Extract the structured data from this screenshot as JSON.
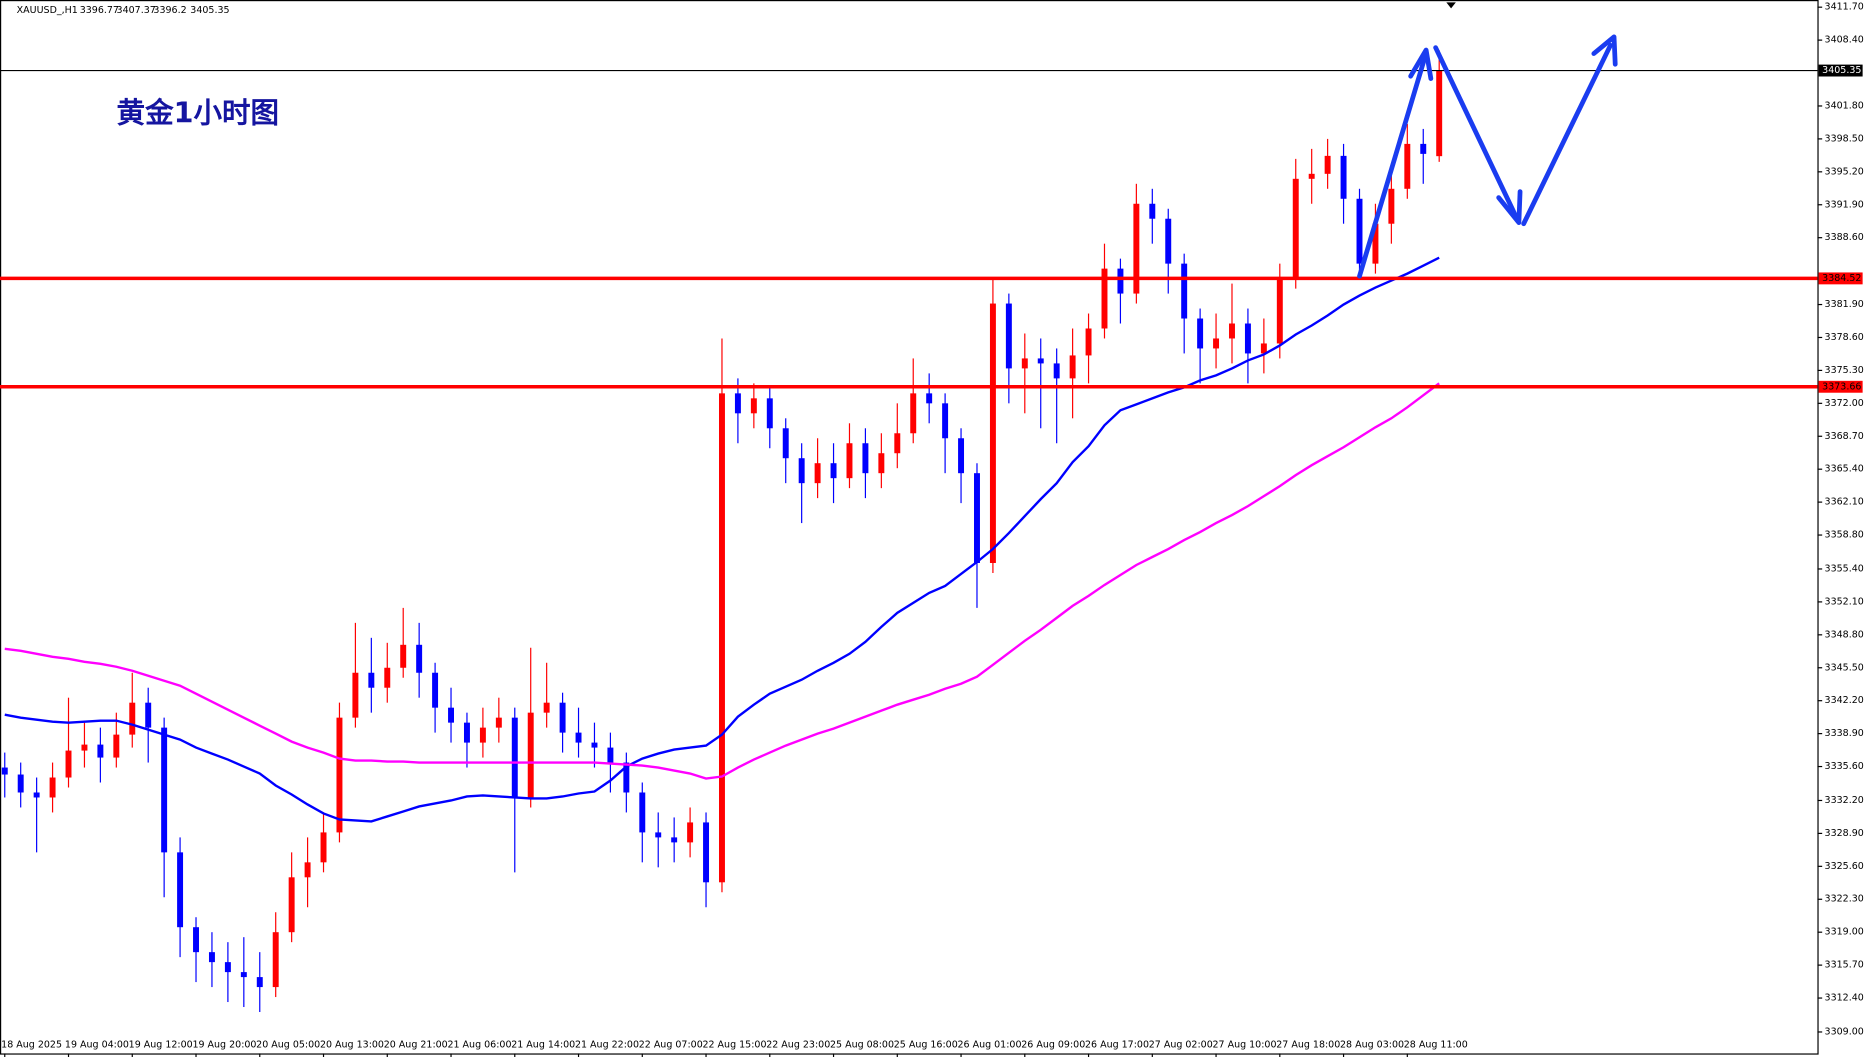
{
  "chart_data": {
    "type": "candlestick",
    "symbol": "XAUUSD_,H1",
    "title": "黄金1小时图",
    "up_color": "#ff0000",
    "down_color": "#0000ff",
    "categories": [
      "18 Aug 2025",
      null,
      null,
      null,
      "19 Aug 04:00",
      null,
      null,
      null,
      "19 Aug 12:00",
      null,
      null,
      null,
      "19 Aug 20:00",
      null,
      null,
      null,
      "20 Aug 05:00",
      null,
      null,
      null,
      "20 Aug 13:00",
      null,
      null,
      null,
      "20 Aug 21:00",
      null,
      null,
      null,
      "21 Aug 06:00",
      null,
      null,
      null,
      "21 Aug 14:00",
      null,
      null,
      null,
      "21 Aug 22:00",
      null,
      null,
      null,
      "22 Aug 07:00",
      null,
      null,
      null,
      "22 Aug 15:00",
      null,
      null,
      null,
      "22 Aug 23:00",
      null,
      null,
      null,
      "25 Aug 08:00",
      null,
      null,
      null,
      "25 Aug 16:00",
      null,
      null,
      null,
      "26 Aug 01:00",
      null,
      null,
      null,
      "26 Aug 09:00",
      null,
      null,
      null,
      "26 Aug 17:00",
      null,
      null,
      null,
      "27 Aug 02:00",
      null,
      null,
      null,
      "27 Aug 10:00",
      null,
      null,
      null,
      "27 Aug 18:00",
      null,
      null,
      null,
      "28 Aug 03:00",
      null,
      null,
      null,
      "28 Aug 11:00",
      null,
      null
    ],
    "candles": {
      "open": [
        3335.5,
        3334.8,
        3333.0,
        3332.5,
        3334.5,
        3337.2,
        3337.8,
        3336.5,
        3338.8,
        3342.0,
        3339.5,
        3327.0,
        3319.5,
        3317.0,
        3316.0,
        3315.0,
        3314.5,
        3313.5,
        3319.0,
        3324.5,
        3326.0,
        3329.0,
        3340.5,
        3345.0,
        3343.5,
        3345.5,
        3347.8,
        3345.0,
        3341.5,
        3340.0,
        3338.0,
        3339.5,
        3340.5,
        3332.5,
        3341.0,
        3342.0,
        3339.0,
        3338.0,
        3337.5,
        3336.0,
        3333.0,
        3329.0,
        3328.5,
        3328.0,
        3330.0,
        3324.0,
        3373.0,
        3371.0,
        3372.5,
        3369.5,
        3366.5,
        3364.0,
        3366.0,
        3364.5,
        3368.0,
        3365.0,
        3367.0,
        3369.0,
        3373.0,
        3372.0,
        3368.5,
        3365.0,
        3356.0,
        3382.0,
        3375.5,
        3376.5,
        3376.0,
        3374.5,
        3376.8,
        3379.5,
        3385.5,
        3383.0,
        3392.0,
        3390.5,
        3386.0,
        3380.5,
        3377.5,
        3378.5,
        3380.0,
        3377.0,
        3378.0,
        3384.5,
        3394.5,
        3395.0,
        3396.8,
        3392.5,
        3386.0,
        3390.0,
        3393.5,
        3398.0,
        3396.77
      ],
      "high": [
        3337.0,
        3336.0,
        3334.5,
        3336.0,
        3342.5,
        3340.0,
        3339.5,
        3341.0,
        3345.0,
        3343.5,
        3340.5,
        3328.5,
        3320.5,
        3319.0,
        3318.0,
        3318.5,
        3317.0,
        3321.0,
        3327.0,
        3328.5,
        3331.0,
        3342.0,
        3350.0,
        3348.5,
        3348.0,
        3351.5,
        3350.0,
        3346.0,
        3343.5,
        3341.0,
        3341.5,
        3342.5,
        3341.5,
        3347.5,
        3346.0,
        3343.0,
        3341.5,
        3340.0,
        3339.0,
        3337.0,
        3334.0,
        3331.0,
        3330.5,
        3331.5,
        3331.0,
        3378.5,
        3374.5,
        3374.0,
        3373.5,
        3370.5,
        3368.0,
        3368.5,
        3368.0,
        3370.0,
        3369.5,
        3369.0,
        3372.0,
        3376.5,
        3375.0,
        3373.0,
        3369.5,
        3366.0,
        3384.5,
        3383.0,
        3379.0,
        3378.5,
        3377.5,
        3379.5,
        3381.0,
        3388.0,
        3386.5,
        3394.0,
        3393.5,
        3391.5,
        3387.0,
        3381.5,
        3381.0,
        3384.0,
        3381.5,
        3380.5,
        3386.0,
        3396.5,
        3397.5,
        3398.5,
        3398.0,
        3393.5,
        3392.0,
        3395.0,
        3400.0,
        3399.5,
        3407.37
      ],
      "low": [
        3332.5,
        3331.5,
        3327.0,
        3331.0,
        3333.5,
        3335.5,
        3334.0,
        3335.5,
        3337.5,
        3336.0,
        3322.5,
        3316.5,
        3314.0,
        3313.5,
        3312.0,
        3311.5,
        3311.0,
        3312.5,
        3318.0,
        3321.5,
        3325.0,
        3328.0,
        3339.5,
        3341.0,
        3342.0,
        3344.5,
        3342.5,
        3339.0,
        3338.0,
        3335.5,
        3336.5,
        3338.0,
        3325.0,
        3331.5,
        3339.5,
        3337.0,
        3336.5,
        3335.5,
        3333.0,
        3331.0,
        3326.0,
        3325.5,
        3326.0,
        3326.5,
        3321.5,
        3323.0,
        3368.0,
        3369.5,
        3367.5,
        3364.0,
        3360.0,
        3362.5,
        3362.0,
        3363.5,
        3362.5,
        3363.5,
        3365.5,
        3368.0,
        3370.0,
        3365.0,
        3362.0,
        3351.5,
        3355.0,
        3372.0,
        3371.0,
        3369.5,
        3368.0,
        3370.5,
        3374.0,
        3378.5,
        3380.0,
        3382.0,
        3388.0,
        3383.0,
        3377.0,
        3374.0,
        3375.5,
        3376.0,
        3374.0,
        3375.0,
        3376.5,
        3383.5,
        3392.0,
        3393.5,
        3390.0,
        3384.5,
        3385.0,
        3388.0,
        3392.5,
        3394.0,
        3396.2
      ],
      "close": [
        3334.8,
        3333.0,
        3332.5,
        3334.5,
        3337.2,
        3337.8,
        3336.5,
        3338.8,
        3342.0,
        3339.5,
        3327.0,
        3319.5,
        3317.0,
        3316.0,
        3315.0,
        3314.5,
        3313.5,
        3319.0,
        3324.5,
        3326.0,
        3329.0,
        3340.5,
        3345.0,
        3343.5,
        3345.5,
        3347.8,
        3345.0,
        3341.5,
        3340.0,
        3338.0,
        3339.5,
        3340.5,
        3332.5,
        3341.0,
        3342.0,
        3339.0,
        3338.0,
        3337.5,
        3336.0,
        3333.0,
        3329.0,
        3328.5,
        3328.0,
        3330.0,
        3324.0,
        3373.0,
        3371.0,
        3372.5,
        3369.5,
        3366.5,
        3364.0,
        3366.0,
        3364.5,
        3368.0,
        3365.0,
        3367.0,
        3369.0,
        3373.0,
        3372.0,
        3368.5,
        3365.0,
        3356.0,
        3382.0,
        3375.5,
        3376.5,
        3376.0,
        3374.5,
        3376.8,
        3379.5,
        3385.5,
        3383.0,
        3392.0,
        3390.5,
        3386.0,
        3380.5,
        3377.5,
        3378.5,
        3380.0,
        3377.0,
        3378.0,
        3384.5,
        3394.5,
        3395.0,
        3396.8,
        3392.5,
        3386.0,
        3390.0,
        3393.5,
        3398.0,
        3397.0,
        3405.35
      ]
    },
    "series": [
      {
        "color": "#0000ff",
        "values": [
          3340.8,
          3340.5,
          3340.3,
          3340.1,
          3340.0,
          3340.1,
          3340.2,
          3340.2,
          3339.8,
          3339.3,
          3338.8,
          3338.3,
          3337.5,
          3336.9,
          3336.3,
          3335.6,
          3334.9,
          3333.7,
          3332.8,
          3331.8,
          3330.9,
          3330.3,
          3330.2,
          3330.1,
          3330.6,
          3331.1,
          3331.6,
          3331.9,
          3332.2,
          3332.6,
          3332.7,
          3332.6,
          3332.5,
          3332.4,
          3332.4,
          3332.6,
          3332.9,
          3333.1,
          3334.2,
          3335.6,
          3336.4,
          3336.9,
          3337.3,
          3337.5,
          3337.7,
          3338.8,
          3340.6,
          3341.8,
          3342.9,
          3343.6,
          3344.3,
          3345.2,
          3346.0,
          3346.9,
          3348.1,
          3349.6,
          3351.0,
          3352.0,
          3353.0,
          3353.7,
          3354.9,
          3356.1,
          3357.4,
          3359.0,
          3360.7,
          3362.4,
          3364.0,
          3366.1,
          3367.7,
          3369.8,
          3371.3,
          3371.9,
          3372.5,
          3373.1,
          3373.6,
          3374.3,
          3374.8,
          3375.5,
          3376.3,
          3376.9,
          3377.8,
          3378.9,
          3379.8,
          3380.8,
          3381.9,
          3382.8,
          3383.6,
          3384.3,
          3385.0,
          3385.8,
          3386.6
        ]
      },
      {
        "color": "#ff00ff",
        "values": [
          3347.4,
          3347.2,
          3346.9,
          3346.6,
          3346.4,
          3346.1,
          3345.9,
          3345.6,
          3345.2,
          3344.7,
          3344.2,
          3343.7,
          3342.9,
          3342.1,
          3341.3,
          3340.5,
          3339.7,
          3338.9,
          3338.1,
          3337.5,
          3337.0,
          3336.4,
          3336.2,
          3336.2,
          3336.1,
          3336.1,
          3336.0,
          3336.0,
          3336.0,
          3336.0,
          3336.0,
          3336.0,
          3336.0,
          3336.0,
          3336.0,
          3336.0,
          3336.0,
          3336.0,
          3335.9,
          3335.8,
          3335.7,
          3335.5,
          3335.2,
          3334.9,
          3334.4,
          3334.6,
          3335.5,
          3336.3,
          3337.0,
          3337.7,
          3338.3,
          3338.9,
          3339.4,
          3340.0,
          3340.6,
          3341.2,
          3341.8,
          3342.3,
          3342.8,
          3343.4,
          3343.9,
          3344.6,
          3345.8,
          3347.0,
          3348.2,
          3349.3,
          3350.5,
          3351.7,
          3352.7,
          3353.8,
          3354.8,
          3355.8,
          3356.6,
          3357.4,
          3358.3,
          3359.1,
          3360.0,
          3360.8,
          3361.7,
          3362.7,
          3363.7,
          3364.8,
          3365.8,
          3366.7,
          3367.6,
          3368.6,
          3369.6,
          3370.5,
          3371.6,
          3372.8,
          3374.0
        ]
      }
    ],
    "hlines": [
      {
        "value": 3405.35,
        "color": "#000000"
      },
      {
        "value": 3384.52,
        "color": "#ff0000"
      },
      {
        "value": 3373.66,
        "color": "#ff0000"
      }
    ],
    "ylim": [
      3306.85,
      3412.42
    ],
    "yticks": [
      {
        "value": 3411.7,
        "label": "3411.70"
      },
      {
        "value": 3408.4,
        "label": "3408.40"
      },
      {
        "value": 3401.8,
        "label": "3401.80"
      },
      {
        "value": 3398.5,
        "label": "3398.50"
      },
      {
        "value": 3395.2,
        "label": "3395.20"
      },
      {
        "value": 3391.9,
        "label": "3391.90"
      },
      {
        "value": 3388.6,
        "label": "3388.60"
      },
      {
        "value": 3381.9,
        "label": "3381.90"
      },
      {
        "value": 3378.6,
        "label": "3378.60"
      },
      {
        "value": 3375.3,
        "label": "3375.30"
      },
      {
        "value": 3372,
        "label": "3372.00"
      },
      {
        "value": 3368.7,
        "label": "3368.70"
      },
      {
        "value": 3365.4,
        "label": "3365.40"
      },
      {
        "value": 3362.1,
        "label": "3362.10"
      },
      {
        "value": 3358.8,
        "label": "3358.80"
      },
      {
        "value": 3355.4,
        "label": "3355.40"
      },
      {
        "value": 3352.1,
        "label": "3352.10"
      },
      {
        "value": 3348.8,
        "label": "3348.80"
      },
      {
        "value": 3345.5,
        "label": "3345.50"
      },
      {
        "value": 3342.2,
        "label": "3342.20"
      },
      {
        "value": 3338.9,
        "label": "3338.90"
      },
      {
        "value": 3335.6,
        "label": "3335.60"
      },
      {
        "value": 3332.2,
        "label": "3332.20"
      },
      {
        "value": 3328.9,
        "label": "3328.90"
      },
      {
        "value": 3325.6,
        "label": "3325.60"
      },
      {
        "value": 3322.3,
        "label": "3322.30"
      },
      {
        "value": 3319,
        "label": "3319.00"
      },
      {
        "value": 3315.7,
        "label": "3315.70"
      },
      {
        "value": 3312.4,
        "label": "3312.40"
      },
      {
        "value": 3309,
        "label": "3309.00"
      }
    ],
    "grid": false
  }
}
